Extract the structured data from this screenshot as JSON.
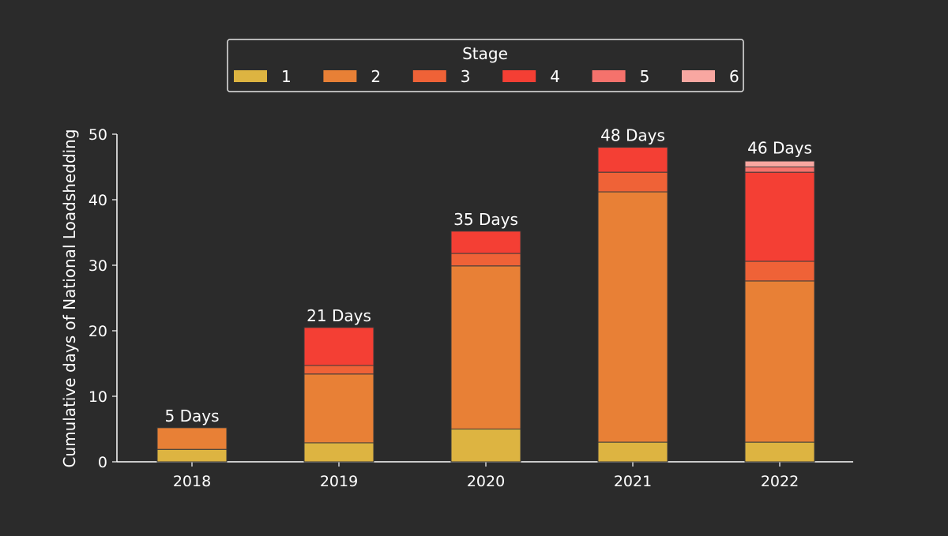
{
  "chart_data": {
    "type": "bar",
    "stacked": true,
    "categories": [
      "2018",
      "2019",
      "2020",
      "2021",
      "2022"
    ],
    "ylabel": "Cumulative days of National Loadshedding",
    "xlabel": "",
    "ylim": [
      0,
      50
    ],
    "yticks": [
      0,
      10,
      20,
      30,
      40,
      50
    ],
    "grid": false,
    "legend": {
      "title": "Stage",
      "placement": "top-center"
    },
    "series": [
      {
        "name": "1",
        "color": "#ddb441",
        "values": [
          1.9,
          2.9,
          5.0,
          3.0,
          3.0
        ]
      },
      {
        "name": "2",
        "color": "#e88036",
        "values": [
          3.3,
          10.5,
          24.9,
          38.2,
          24.6
        ]
      },
      {
        "name": "3",
        "color": "#ef6237",
        "values": [
          0,
          1.3,
          1.9,
          3.0,
          3.0
        ]
      },
      {
        "name": "4",
        "color": "#f43f34",
        "values": [
          0,
          5.8,
          3.4,
          3.8,
          13.6
        ]
      },
      {
        "name": "5",
        "color": "#f5726c",
        "values": [
          0,
          0,
          0,
          0,
          0.8
        ]
      },
      {
        "name": "6",
        "color": "#f8a7a1",
        "values": [
          0,
          0,
          0,
          0,
          0.9
        ]
      }
    ],
    "totals": [
      5.2,
      20.5,
      35.2,
      48.0,
      46.1
    ],
    "total_labels": [
      "5 Days",
      "21 Days",
      "35 Days",
      "48 Days",
      "46 Days"
    ],
    "colors": {
      "background": "#2b2b2b",
      "axis": "#ffffff",
      "bar_edge": "#3a3a3a"
    }
  }
}
